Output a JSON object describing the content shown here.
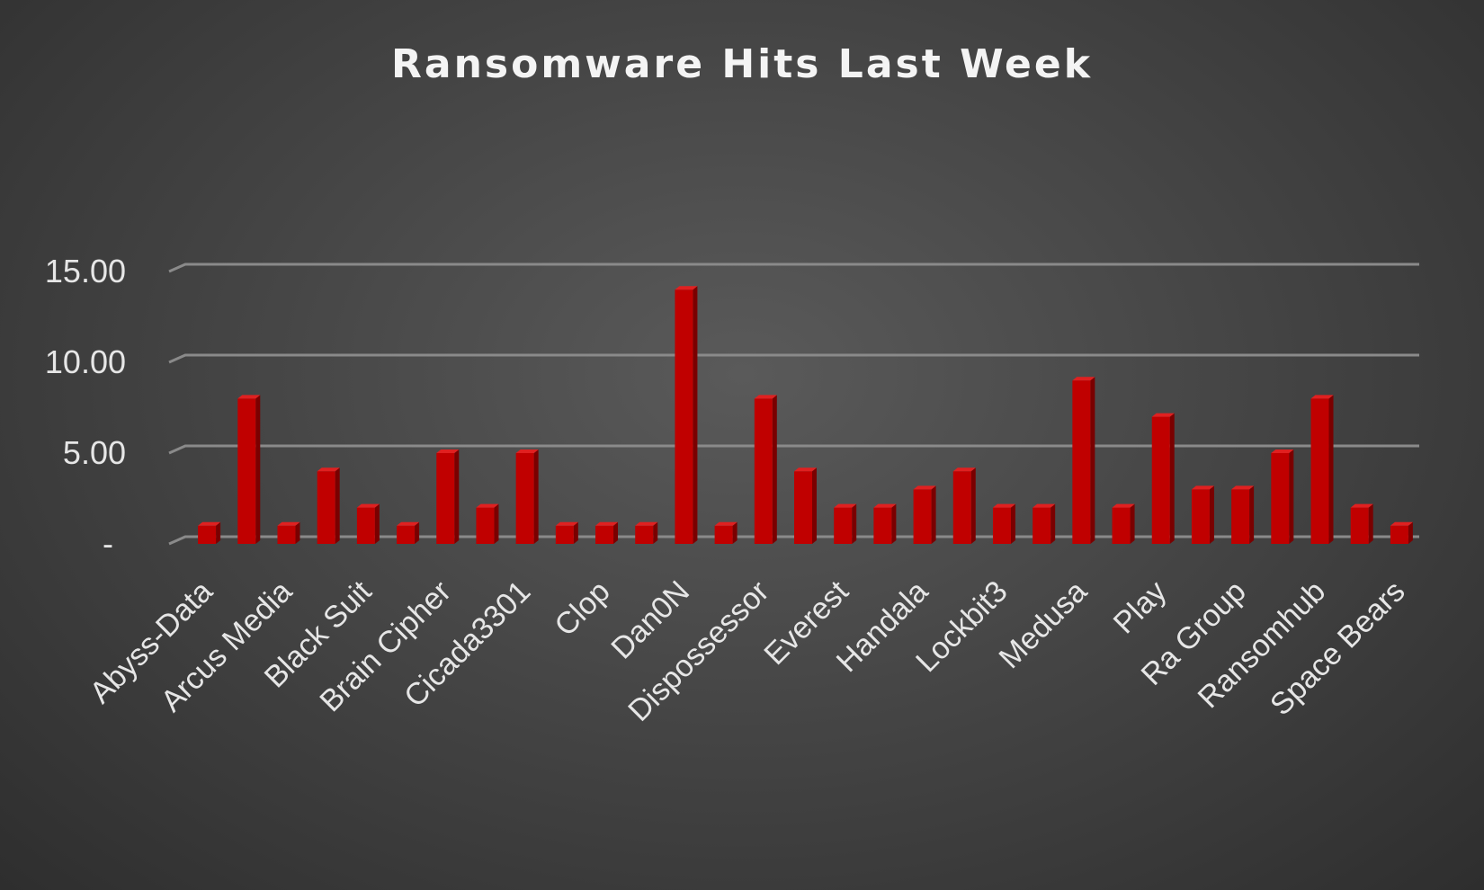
{
  "chart_data": {
    "type": "bar",
    "title": "Ransomware Hits Last Week",
    "xlabel": "",
    "ylabel": "",
    "ylim": [
      0,
      15
    ],
    "yticks": [
      {
        "value": 0,
        "label": "-"
      },
      {
        "value": 5,
        "label": "5.00"
      },
      {
        "value": 10,
        "label": "10.00"
      },
      {
        "value": 15,
        "label": "15.00"
      }
    ],
    "grid": true,
    "bar_color": "#c00000",
    "categories": [
      "Abyss-Data",
      "",
      "Arcus Media",
      "",
      "Black Suit",
      "",
      "Brain Cipher",
      "",
      "Cicada3301",
      "",
      "Clop",
      "",
      "Dan0N",
      "",
      "Dispossessor",
      "",
      "Everest",
      "",
      "Handala",
      "",
      "Lockbit3",
      "",
      "Medusa",
      "",
      "Play",
      "",
      "Ra Group",
      "",
      "Ransomhub",
      "",
      "Space Bears"
    ],
    "values": [
      1,
      8,
      1,
      4,
      2,
      1,
      5,
      2,
      5,
      1,
      1,
      1,
      14,
      1,
      8,
      4,
      2,
      2,
      3,
      4,
      2,
      2,
      9,
      2,
      7,
      3,
      3,
      5,
      8,
      2,
      1
    ]
  }
}
